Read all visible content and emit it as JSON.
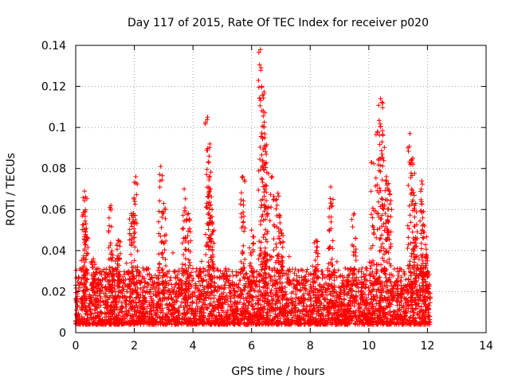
{
  "chart_data": {
    "type": "scatter",
    "title": "Day 117 of 2015, Rate Of TEC Index for receiver p020",
    "xlabel": "GPS time / hours",
    "ylabel": "ROTI / TECUs",
    "xlim": [
      0,
      14
    ],
    "ylim": [
      0,
      0.14
    ],
    "x_ticks": [
      0,
      2,
      4,
      6,
      8,
      10,
      12,
      14
    ],
    "y_ticks": [
      0,
      0.02,
      0.04,
      0.06,
      0.08,
      0.1,
      0.12,
      0.14
    ],
    "x_tick_labels": [
      "0",
      "2",
      "4",
      "6",
      "8",
      "10",
      "12",
      "14"
    ],
    "y_tick_labels": [
      "0",
      "0.02",
      "0.04",
      "0.06",
      "0.08",
      "0.1",
      "0.12",
      "0.14"
    ],
    "grid": true,
    "marker": "+",
    "colors": {
      "series": "#ff0000",
      "grid": "#a0a0a0",
      "axis": "#000000"
    },
    "data_range": {
      "x_start": 0.0,
      "x_end": 12.1
    },
    "background_band": {
      "typical_min": 0.004,
      "typical_max": 0.026
    },
    "spikes": [
      {
        "x": 0.3,
        "y": 0.069
      },
      {
        "x": 0.35,
        "y": 0.053
      },
      {
        "x": 0.6,
        "y": 0.036
      },
      {
        "x": 1.2,
        "y": 0.062
      },
      {
        "x": 1.45,
        "y": 0.045
      },
      {
        "x": 1.9,
        "y": 0.058
      },
      {
        "x": 2.05,
        "y": 0.076
      },
      {
        "x": 2.9,
        "y": 0.081
      },
      {
        "x": 3.0,
        "y": 0.063
      },
      {
        "x": 3.7,
        "y": 0.07
      },
      {
        "x": 3.85,
        "y": 0.058
      },
      {
        "x": 4.5,
        "y": 0.105
      },
      {
        "x": 4.55,
        "y": 0.086
      },
      {
        "x": 4.6,
        "y": 0.07
      },
      {
        "x": 4.65,
        "y": 0.06
      },
      {
        "x": 5.7,
        "y": 0.076
      },
      {
        "x": 6.0,
        "y": 0.05
      },
      {
        "x": 6.3,
        "y": 0.138
      },
      {
        "x": 6.35,
        "y": 0.12
      },
      {
        "x": 6.4,
        "y": 0.108
      },
      {
        "x": 6.45,
        "y": 0.095
      },
      {
        "x": 6.5,
        "y": 0.087
      },
      {
        "x": 6.7,
        "y": 0.076
      },
      {
        "x": 6.9,
        "y": 0.068
      },
      {
        "x": 7.0,
        "y": 0.05
      },
      {
        "x": 8.2,
        "y": 0.045
      },
      {
        "x": 8.7,
        "y": 0.071
      },
      {
        "x": 9.5,
        "y": 0.058
      },
      {
        "x": 10.1,
        "y": 0.083
      },
      {
        "x": 10.3,
        "y": 0.098
      },
      {
        "x": 10.4,
        "y": 0.114
      },
      {
        "x": 10.45,
        "y": 0.093
      },
      {
        "x": 10.6,
        "y": 0.076
      },
      {
        "x": 10.7,
        "y": 0.069
      },
      {
        "x": 11.4,
        "y": 0.097
      },
      {
        "x": 11.5,
        "y": 0.085
      },
      {
        "x": 11.6,
        "y": 0.063
      },
      {
        "x": 11.8,
        "y": 0.074
      },
      {
        "x": 11.9,
        "y": 0.052
      },
      {
        "x": 12.0,
        "y": 0.035
      }
    ]
  }
}
